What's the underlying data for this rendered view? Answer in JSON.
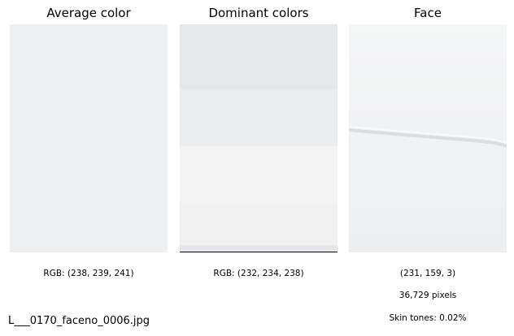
{
  "panels": {
    "average": {
      "title": "Average color",
      "swatch_color": "#eeeff1",
      "caption": "RGB: (238, 239, 241)"
    },
    "dominant": {
      "title": "Dominant colors",
      "bands": [
        {
          "color": "#e6e7ea",
          "share": 0.285
        },
        {
          "color": "#ebecee",
          "share": 0.25
        },
        {
          "color": "#f3f3f3",
          "share": 0.25
        },
        {
          "color": "#f1f1f1",
          "share": 0.185
        },
        {
          "color": "#e5e5ea",
          "share": 0.03
        }
      ],
      "caption": "RGB: (232, 234, 238)"
    },
    "face": {
      "title": "Face",
      "rgb": "(231, 159, 3)",
      "pixels": "36,729 pixels",
      "skin": "Skin tones: 0.02%"
    }
  },
  "filename": "L___0170_faceno_0006.jpg"
}
